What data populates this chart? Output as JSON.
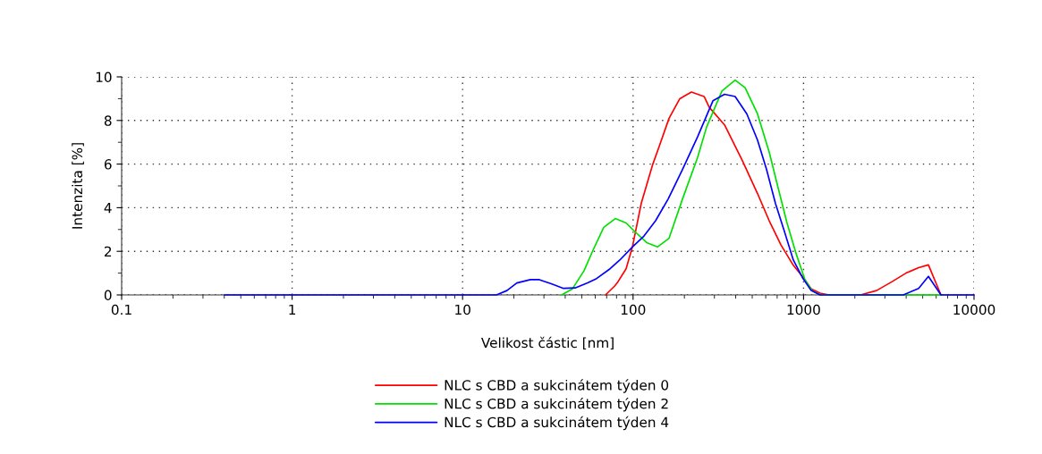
{
  "chart_data": {
    "type": "line",
    "xlabel": "Velikost částic [nm]",
    "ylabel": "Intenzita [%]",
    "log": "x",
    "xlim": [
      0.1,
      10000
    ],
    "xticks": [
      0.1,
      1,
      10,
      100,
      1000,
      10000
    ],
    "ylim": [
      0,
      10
    ],
    "yticks": [
      0,
      2,
      4,
      6,
      8,
      10
    ],
    "grid": true,
    "legend": "bottom",
    "marker": "none",
    "line_style": "solid",
    "series": [
      {
        "name": "NLC s CBD a sukcinátem týden 0",
        "color": "#ff0000",
        "x": [
          68.9,
          77.8,
          80.7,
          91.0,
          99.1,
          111.7,
          130.6,
          142.2,
          162.6,
          188,
          220,
          261,
          280,
          344,
          438,
          537,
          629,
          736,
          871,
          995,
          1109,
          1250,
          1413,
          2158,
          2680,
          3289,
          3990,
          4732,
          5400,
          6397
        ],
        "values": [
          0,
          0.4,
          0.55,
          1.2,
          2.2,
          4.2,
          6.0,
          6.8,
          8.1,
          9.0,
          9.3,
          9.1,
          8.6,
          7.8,
          6.15,
          4.65,
          3.4,
          2.3,
          1.36,
          0.8,
          0.28,
          0.08,
          0,
          0,
          0.2,
          0.6,
          1.0,
          1.25,
          1.38,
          0
        ]
      },
      {
        "name": "NLC s CBD a sukcinátem týden 2",
        "color": "#00e000",
        "x": [
          38.1,
          44.1,
          51.5,
          58.2,
          67.3,
          78.7,
          91.0,
          102.6,
          120.2,
          139.0,
          162.6,
          195,
          239,
          270,
          332,
          397,
          454,
          537,
          629,
          710,
          800,
          904,
          1019,
          1122,
          1250,
          6397
        ],
        "values": [
          0,
          0.28,
          1.1,
          2.05,
          3.1,
          3.5,
          3.3,
          2.9,
          2.4,
          2.2,
          2.6,
          4.4,
          6.3,
          7.7,
          9.35,
          9.85,
          9.5,
          8.3,
          6.55,
          4.9,
          3.3,
          1.9,
          0.7,
          0.2,
          0,
          0
        ]
      },
      {
        "name": "NLC s CBD a sukcinátem týden 4",
        "color": "#0000ff",
        "x": [
          0.4,
          15.8,
          18.2,
          20.8,
          25.0,
          28.2,
          33.4,
          39.1,
          45.7,
          54.1,
          61.1,
          73.3,
          83.6,
          99.1,
          115.9,
          135.5,
          160.7,
          195,
          239,
          294,
          344,
          397,
          465,
          537,
          607,
          684,
          773,
          871,
          984,
          1109,
          1250,
          3846,
          4732,
          5400,
          6397,
          10000
        ],
        "values": [
          0,
          0,
          0.2,
          0.55,
          0.7,
          0.7,
          0.5,
          0.3,
          0.32,
          0.55,
          0.75,
          1.2,
          1.6,
          2.2,
          2.7,
          3.4,
          4.4,
          5.75,
          7.25,
          8.9,
          9.2,
          9.1,
          8.3,
          7.1,
          5.75,
          4.2,
          2.9,
          1.6,
          0.8,
          0.2,
          0,
          0,
          0.3,
          0.85,
          0,
          0
        ]
      }
    ]
  }
}
